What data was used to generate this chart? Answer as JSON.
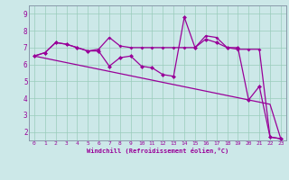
{
  "xlabel": "Windchill (Refroidissement éolien,°C)",
  "bg_color": "#cce8e8",
  "line_color": "#990099",
  "grid_color": "#99ccbb",
  "x": [
    0,
    1,
    2,
    3,
    4,
    5,
    6,
    7,
    8,
    9,
    10,
    11,
    12,
    13,
    14,
    15,
    16,
    17,
    18,
    19,
    20,
    21,
    22,
    23
  ],
  "series1": [
    6.5,
    6.7,
    7.3,
    7.2,
    7.0,
    6.8,
    6.8,
    5.9,
    6.4,
    6.5,
    5.9,
    5.8,
    5.4,
    5.3,
    8.8,
    7.0,
    7.5,
    7.3,
    7.0,
    7.0,
    3.9,
    4.7,
    1.7,
    1.6
  ],
  "series2": [
    6.5,
    6.7,
    7.3,
    7.2,
    7.0,
    6.8,
    6.9,
    7.6,
    7.1,
    7.0,
    7.0,
    7.0,
    7.0,
    7.0,
    7.0,
    7.0,
    7.7,
    7.6,
    7.0,
    6.9,
    6.9,
    6.9,
    1.7,
    1.6
  ],
  "series3_slope": [
    6.5,
    6.37,
    6.24,
    6.11,
    5.98,
    5.85,
    5.72,
    5.59,
    5.46,
    5.33,
    5.2,
    5.07,
    4.94,
    4.81,
    4.68,
    4.55,
    4.42,
    4.29,
    4.16,
    4.03,
    3.9,
    3.77,
    3.64,
    1.6
  ],
  "ylim": [
    1.5,
    9.5
  ],
  "yticks": [
    2,
    3,
    4,
    5,
    6,
    7,
    8,
    9
  ],
  "xlim": [
    -0.5,
    23.5
  ],
  "xtick_labels": [
    "0",
    "1",
    "2",
    "3",
    "4",
    "5",
    "6",
    "7",
    "8",
    "9",
    "10",
    "11",
    "12",
    "13",
    "14",
    "15",
    "16",
    "17",
    "18",
    "19",
    "20",
    "21",
    "22",
    "23"
  ]
}
